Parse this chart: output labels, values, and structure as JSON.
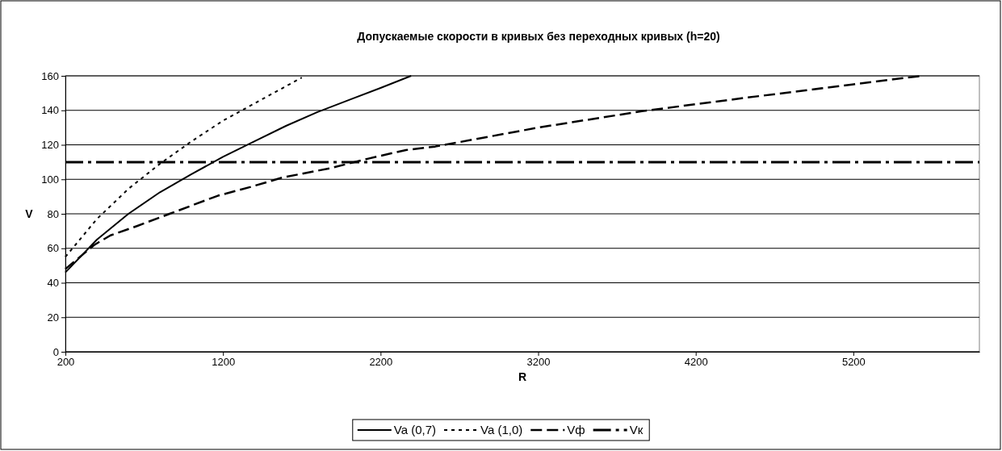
{
  "chart_data": {
    "type": "line",
    "title": "Допускаемые скорости в кривых без переходных кривых (h=20)",
    "xlabel": "R",
    "ylabel": "V",
    "xlim": [
      200,
      6000
    ],
    "xticks": [
      200,
      1200,
      2200,
      3200,
      4200,
      5200
    ],
    "ylim": [
      0,
      160
    ],
    "yticks": [
      0,
      20,
      40,
      60,
      80,
      100,
      120,
      140,
      160
    ],
    "grid": "y",
    "legend": "bottom",
    "marker": "none",
    "series": [
      {
        "name": "Va (0,7)",
        "color": "#000000",
        "line_style": "solid",
        "x": [
          200,
          400,
          600,
          800,
          1000,
          1200,
          1400,
          1600,
          1800,
          2000,
          2200,
          2394
        ],
        "values": [
          46,
          65,
          80,
          92.5,
          103,
          113,
          122,
          131,
          139,
          146,
          153,
          160
        ]
      },
      {
        "name": "Va (1,0)",
        "color": "#000000",
        "line_style": "dotted",
        "x": [
          200,
          400,
          600,
          800,
          1000,
          1200,
          1400,
          1600,
          1700
        ],
        "values": [
          55,
          77,
          94.5,
          109,
          122,
          134,
          144,
          154,
          159
        ]
      },
      {
        "name": "Vф",
        "color": "#000000",
        "line_style": "dashed",
        "x": [
          200,
          384,
          486,
          657,
          861,
          1168,
          1372,
          1577,
          1884,
          2122,
          2361,
          2547,
          3201,
          3859,
          4492,
          5193,
          5635
        ],
        "values": [
          48,
          62,
          67.5,
          73,
          80,
          90.5,
          95.5,
          101,
          106.5,
          112,
          117,
          119,
          130,
          139.5,
          147,
          155,
          160
        ]
      },
      {
        "name": "Vк",
        "color": "#000000",
        "line_style": "dashdot",
        "x": [
          200,
          6000
        ],
        "values": [
          110,
          110
        ]
      }
    ]
  }
}
